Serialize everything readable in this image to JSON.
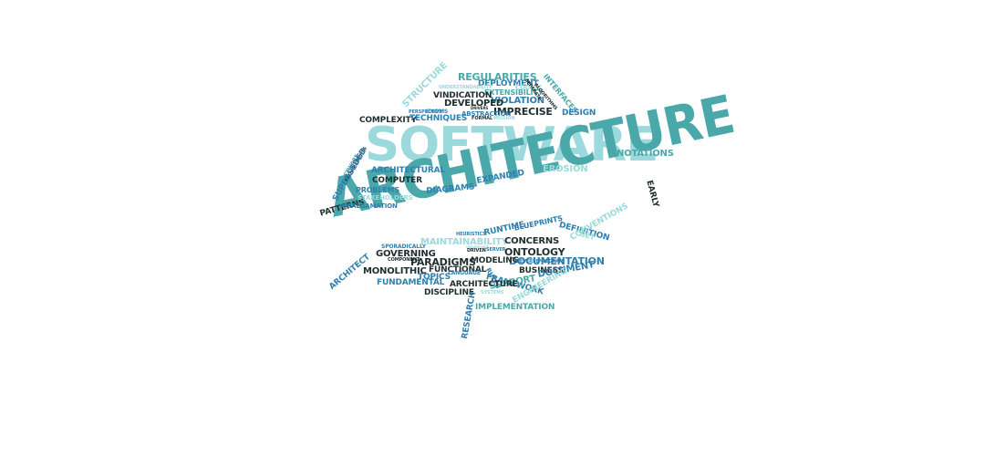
{
  "title": "SOFTWARE",
  "headline": "ARCHITECTURE",
  "words": [
    "REGULARITIES",
    "DEPLOYMENT",
    "UNDERSTANDABILITY",
    "CODIFY",
    "EXTENSIBILITY",
    "VINDICATION",
    "VIOLATION",
    "DEVELOPED",
    "IMPRECISE",
    "STRUCTURE",
    "INTERFACES",
    "SEPARATE",
    "ALGORITHMS",
    "PERSPECTIVE",
    "IDIOMS",
    "DRIVERS",
    "ABSTRACTION",
    "DESIGN",
    "COMPLEXITY",
    "TECHNIQUES",
    "FORMAL",
    "MISSION",
    "NOTATIONS",
    "EROSION",
    "SOFTWARE",
    "REQUIREMENTS",
    "SUPERSEDED",
    "ARCHITECTURAL",
    "COMPUTER",
    "PATTERNS",
    "PROBLEMS",
    "STAKEHOLDERS",
    "AMALGAMATION",
    "DIAGRAMS",
    "EXPANDED",
    "EARLY",
    "RUNTIME",
    "BLUEPRINTS",
    "DEFINITION",
    "HEURISTICS",
    "SET",
    "CONVENTIONS",
    "SPORADICALLY",
    "MAINTAINABILITY",
    "CONCERNS",
    "VIEWPOINT",
    "ONTOLOGY",
    "ARCHITECT",
    "GOVERNING",
    "COMPONENT",
    "DRIVEN",
    "SERVER",
    "DOCUMENTATION",
    "PARADIGMS",
    "MODELING",
    "MONOLITHIC",
    "FUNCTIONAL",
    "RULES",
    "REVERSE",
    "PROGRAM",
    "BUSINESS",
    "TOPICS",
    "LANGUAGE",
    "FRAMEWORK",
    "DOCUMENT",
    "FUNDAMENTAL",
    "SUPPORT",
    "ARCHITECTURE",
    "DISCIPLINE",
    "SYSTEMS",
    "ENGINEERING",
    "RESEARCH",
    "IMPLEMENTATION"
  ]
}
